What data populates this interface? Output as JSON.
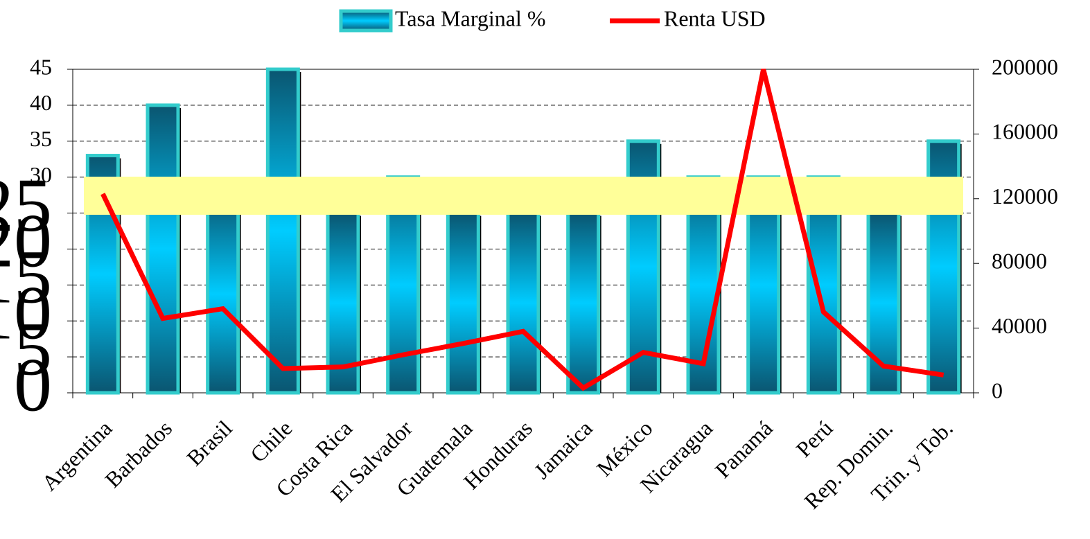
{
  "chart_data": {
    "type": "bar-line",
    "categories": [
      "Argentina",
      "Barbados",
      "Brasil",
      "Chile",
      "Costa Rica",
      "El Salvador",
      "Guatemala",
      "Honduras",
      "Jamaica",
      "México",
      "Nicaragua",
      "Panamá",
      "Perú",
      "Rep. Domin.",
      "Trin. y Tob."
    ],
    "series": [
      {
        "name": "Tasa Marginal %",
        "type": "bar",
        "color": "#33cccc",
        "values": [
          33,
          40,
          27.5,
          45,
          25,
          30,
          25,
          25,
          25,
          35,
          30,
          30,
          30,
          25,
          35
        ]
      },
      {
        "name": "Renta USD",
        "type": "line",
        "axis": "y2",
        "color": "#ff0000",
        "values": [
          123000,
          46000,
          52000,
          15000,
          16000,
          23500,
          30500,
          38000,
          3000,
          25000,
          18000,
          200000,
          50000,
          16500,
          11000
        ]
      }
    ],
    "ylim": [
      0,
      45
    ],
    "yticks": [
      0,
      5,
      10,
      15,
      20,
      25,
      30,
      35,
      40,
      45
    ],
    "y2lim": [
      0,
      200000
    ],
    "y2ticks": [
      0,
      40000,
      80000,
      120000,
      160000,
      200000
    ],
    "grid": true,
    "legend": "top"
  }
}
